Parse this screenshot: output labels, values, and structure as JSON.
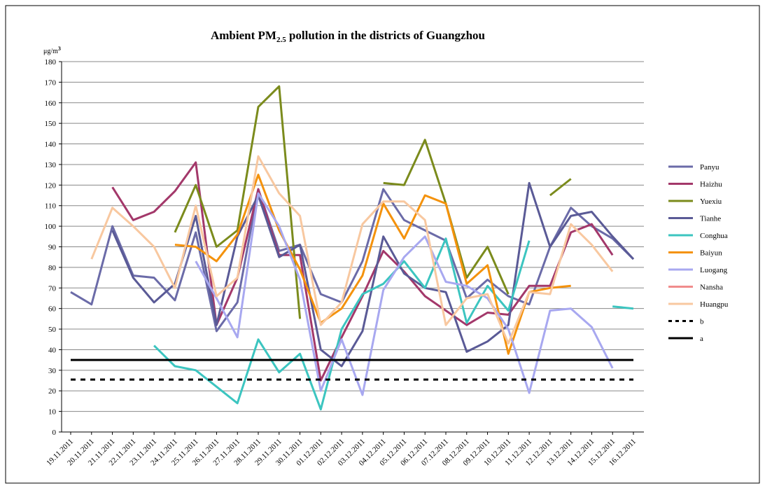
{
  "chart_data": {
    "type": "line",
    "title": [
      "Ambient PM",
      "2.5",
      " pollution in the districts of Guangzhou"
    ],
    "y_unit": [
      "μg/m",
      "3"
    ],
    "categories": [
      "19.11.2011",
      "20.11.2011",
      "21.11.2011",
      "22.11.2011",
      "23.11.2011",
      "24.11.2011",
      "25.11.2011",
      "26.11.2011",
      "27.11.2011",
      "28.11.2011",
      "29.11.2011",
      "30.11.2011",
      "01.12.2011",
      "02.12.2011",
      "03.12.2011",
      "04.12.2011",
      "05.12.2011",
      "06.12.2011",
      "07.12.2011",
      "08.12.2011",
      "09.12.2011",
      "10.12.2011",
      "11.12.2011",
      "12.12.2011",
      "13.12.2011",
      "14.12.2011",
      "15.12.2011",
      "16.12.2011"
    ],
    "ylim": [
      0,
      180
    ],
    "yticks": [
      0,
      10,
      20,
      30,
      40,
      50,
      60,
      70,
      80,
      90,
      100,
      110,
      120,
      130,
      140,
      150,
      160,
      170,
      180
    ],
    "grid": true,
    "series": [
      {
        "name": "Panyu",
        "color": "#6b6ba8",
        "values": [
          68,
          62,
          100,
          76,
          75,
          64,
          97,
          49,
          63,
          118,
          88,
          91,
          67,
          63,
          83,
          118,
          103,
          98,
          93,
          65,
          74,
          66,
          62,
          90,
          109,
          100,
          94,
          84
        ]
      },
      {
        "name": "Haizhu",
        "color": "#a3386a",
        "values": [
          null,
          null,
          119,
          103,
          107,
          117,
          131,
          52,
          75,
          118,
          86,
          86,
          25,
          46,
          66,
          88,
          78,
          66,
          59,
          52,
          58,
          57,
          71,
          71,
          97,
          101,
          86,
          null
        ]
      },
      {
        "name": "Yuexiu",
        "color": "#7b8b1c",
        "values": [
          null,
          null,
          null,
          null,
          null,
          97,
          120,
          90,
          98,
          158,
          168,
          55,
          null,
          null,
          null,
          121,
          120,
          142,
          111,
          75,
          90,
          67,
          null,
          115,
          123,
          null,
          null,
          null
        ]
      },
      {
        "name": "Tianhe",
        "color": "#5a5a96",
        "values": [
          null,
          null,
          98,
          75,
          63,
          72,
          105,
          52,
          95,
          115,
          85,
          91,
          40,
          32,
          49,
          95,
          77,
          70,
          68,
          39,
          44,
          52,
          121,
          90,
          105,
          107,
          95,
          84
        ]
      },
      {
        "name": "Conghua",
        "color": "#3cc5c0",
        "values": [
          null,
          null,
          null,
          null,
          42,
          32,
          30,
          22,
          14,
          45,
          29,
          38,
          11,
          50,
          67,
          72,
          83,
          70,
          94,
          53,
          71,
          59,
          93,
          null,
          null,
          null,
          61,
          60
        ]
      },
      {
        "name": "Baiyun",
        "color": "#f4920c",
        "values": [
          null,
          null,
          null,
          null,
          null,
          91,
          90,
          83,
          96,
          125,
          98,
          79,
          53,
          60,
          76,
          111,
          94,
          115,
          111,
          72,
          81,
          38,
          68,
          70,
          71,
          null,
          null,
          null
        ]
      },
      {
        "name": "Luogang",
        "color": "#a8a8f0",
        "values": [
          null,
          null,
          null,
          null,
          null,
          null,
          83,
          65,
          46,
          116,
          100,
          74,
          20,
          45,
          18,
          69,
          85,
          95,
          73,
          71,
          65,
          50,
          19,
          59,
          60,
          51,
          31,
          null
        ]
      },
      {
        "name": "Nansha",
        "color": "#f08c8c",
        "values": [
          null,
          null,
          null,
          null,
          null,
          null,
          null,
          null,
          null,
          null,
          null,
          null,
          null,
          null,
          null,
          null,
          null,
          null,
          null,
          null,
          null,
          null,
          null,
          null,
          null,
          null,
          null,
          null
        ]
      },
      {
        "name": "Huangpu",
        "color": "#f8c8a0",
        "values": [
          null,
          84,
          109,
          100,
          90,
          70,
          110,
          66,
          75,
          134,
          116,
          105,
          52,
          63,
          101,
          112,
          112,
          103,
          52,
          65,
          67,
          43,
          68,
          67,
          101,
          91,
          78,
          null
        ]
      },
      {
        "name": "b",
        "color": "#000000",
        "dash": true,
        "values": [
          25.5,
          25.5,
          25.5,
          25.5,
          25.5,
          25.5,
          25.5,
          25.5,
          25.5,
          25.5,
          25.5,
          25.5,
          25.5,
          25.5,
          25.5,
          25.5,
          25.5,
          25.5,
          25.5,
          25.5,
          25.5,
          25.5,
          25.5,
          25.5,
          25.5,
          25.5,
          25.5,
          25.5
        ]
      },
      {
        "name": "a",
        "color": "#000000",
        "values": [
          35,
          35,
          35,
          35,
          35,
          35,
          35,
          35,
          35,
          35,
          35,
          35,
          35,
          35,
          35,
          35,
          35,
          35,
          35,
          35,
          35,
          35,
          35,
          35,
          35,
          35,
          35,
          35
        ]
      }
    ]
  }
}
